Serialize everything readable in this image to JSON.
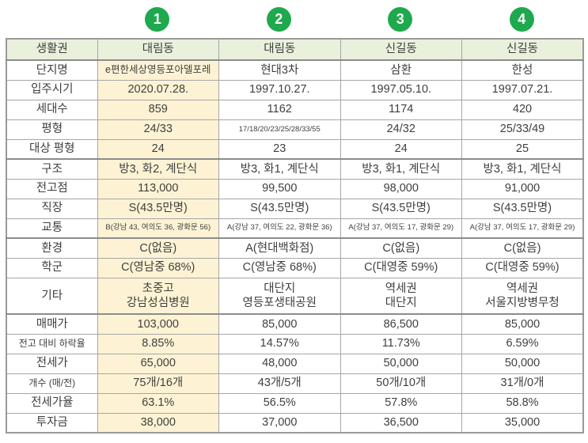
{
  "colors": {
    "badge_green": "#1fa94e",
    "header_row_bg": "#e9f0dc",
    "highlight_column_bg": "#fdf3d4",
    "grid_border": "#a6a6a6",
    "group_border": "#8c8c8c",
    "text": "#3f3f3f"
  },
  "column_badges": [
    "1",
    "2",
    "3",
    "4"
  ],
  "table": {
    "header": {
      "label": "생활권",
      "values": [
        "대림동",
        "대림동",
        "신길동",
        "신길동"
      ]
    },
    "rows": [
      {
        "label": "단지명",
        "values": [
          "e편한세상영등포아델포레",
          "현대3차",
          "삼환",
          "한성"
        ]
      },
      {
        "label": "입주시기",
        "values": [
          "2020.07.28.",
          "1997.10.27.",
          "1997.05.10.",
          "1997.07.21."
        ]
      },
      {
        "label": "세대수",
        "values": [
          "859",
          "1162",
          "1174",
          "420"
        ]
      },
      {
        "label": "평형",
        "values": [
          "24/33",
          "17/18/20/23/25/28/33/55",
          "24/32",
          "25/33/49"
        ]
      },
      {
        "label": "대상 평형",
        "values": [
          "24",
          "23",
          "24",
          "25"
        ],
        "group_end": true
      },
      {
        "label": "구조",
        "values": [
          "방3, 화2, 계단식",
          "방3, 화1, 계단식",
          "방3, 화1, 계단식",
          "방3, 화1, 계단식"
        ]
      },
      {
        "label": "전고점",
        "values": [
          "113,000",
          "99,500",
          "98,000",
          "91,000"
        ]
      },
      {
        "label": "직장",
        "values": [
          "S(43.5만명)",
          "S(43.5만명)",
          "S(43.5만명)",
          "S(43.5만명)"
        ]
      },
      {
        "label": "교통",
        "values": [
          "B(강남 43, 여의도 36, 광화문 56)",
          "A(강남 37, 여의도 22, 광화문 36)",
          "A(강남 37, 여의도 17, 광화문 29)",
          "A(강남 37, 여의도 17, 광화문 29)"
        ],
        "group_end": true
      },
      {
        "label": "환경",
        "values": [
          "C(없음)",
          "A(현대백화점)",
          "C(없음)",
          "C(없음)"
        ]
      },
      {
        "label": "학군",
        "values": [
          "C(영남중 68%)",
          "C(영남중 68%)",
          "C(대영중 59%)",
          "C(대영중 59%)"
        ]
      },
      {
        "label": "기타",
        "values": [
          "초중고\n강남성심병원",
          "대단지\n영등포생태공원",
          "역세권\n대단지",
          "역세권\n서울지방병무청"
        ],
        "group_end": true,
        "tall": true
      },
      {
        "label": "매매가",
        "values": [
          "103,000",
          "85,000",
          "86,500",
          "85,000"
        ]
      },
      {
        "label": "전고 대비 하락율",
        "values": [
          "8.85%",
          "14.57%",
          "11.73%",
          "6.59%"
        ]
      },
      {
        "label": "전세가",
        "values": [
          "65,000",
          "48,000",
          "50,000",
          "50,000"
        ]
      },
      {
        "label": "개수 (매/전)",
        "values": [
          "75개/16개",
          "43개/5개",
          "50개/10개",
          "31개/0개"
        ]
      },
      {
        "label": "전세가율",
        "values": [
          "63.1%",
          "56.5%",
          "57.8%",
          "58.8%"
        ]
      },
      {
        "label": "투자금",
        "values": [
          "38,000",
          "37,000",
          "36,500",
          "35,000"
        ]
      }
    ]
  }
}
